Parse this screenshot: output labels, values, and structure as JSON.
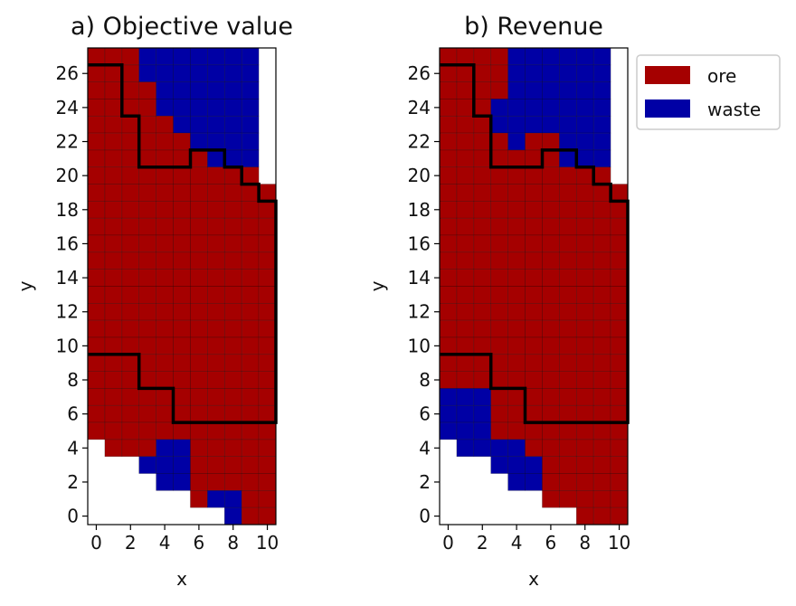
{
  "chart_data": [
    {
      "type": "heatmap",
      "title": "a) Objective value",
      "xlabel": "x",
      "ylabel": "y",
      "xlim": [
        -0.5,
        10.5
      ],
      "ylim": [
        -0.5,
        27.5
      ],
      "xticks": [
        "0",
        "2",
        "4",
        "6",
        "8",
        "10"
      ],
      "yticks": [
        "0",
        "2",
        "4",
        "6",
        "8",
        "10",
        "12",
        "14",
        "16",
        "18",
        "20",
        "22",
        "24",
        "26"
      ],
      "categories": [
        "ore",
        "waste"
      ],
      "grid_rows_top_to_bottom": [
        "OOOWWWWWWW.",
        "OOOWWWWWWW.",
        "OOOOWWWWWW.",
        "OOOOWWWWWW.",
        "OOOOOWWWWW.",
        "OOOOOOWWWW.",
        "OOOOOOOWWW.",
        "OOOOOOOOOO.",
        "OOOOOOOOOOO",
        "OOOOOOOOOOO",
        "OOOOOOOOOOO",
        "OOOOOOOOOOO",
        "OOOOOOOOOOO",
        "OOOOOOOOOOO",
        "OOOOOOOOOOO",
        "OOOOOOOOOOO",
        "OOOOOOOOOOO",
        "OOOOOOOOOOO",
        "OOOOOOOOOOO",
        "OOOOOOOOOOO",
        "OOOOOOOOOOO",
        "OOOOOOOOOOO",
        "OOOOOOOOOOO",
        ".OOOWWOOOOO",
        "...WWWOOOOO",
        "....WWOOOOO",
        "......OWWOO",
        "........WOO"
      ],
      "pit_boundary": [
        [
          -0.5,
          26.5
        ],
        [
          1.5,
          26.5
        ],
        [
          1.5,
          23.5
        ],
        [
          2.5,
          23.5
        ],
        [
          2.5,
          20.5
        ],
        [
          5.5,
          20.5
        ],
        [
          5.5,
          21.5
        ],
        [
          7.5,
          21.5
        ],
        [
          7.5,
          20.5
        ],
        [
          8.5,
          20.5
        ],
        [
          8.5,
          19.5
        ],
        [
          9.5,
          19.5
        ],
        [
          9.5,
          18.5
        ],
        [
          10.5,
          18.5
        ],
        [
          10.5,
          5.5
        ],
        [
          4.5,
          5.5
        ],
        [
          4.5,
          7.5
        ],
        [
          2.5,
          7.5
        ],
        [
          2.5,
          9.5
        ],
        [
          -0.5,
          9.5
        ]
      ]
    },
    {
      "type": "heatmap",
      "title": "b) Revenue",
      "xlabel": "x",
      "ylabel": "y",
      "xlim": [
        -0.5,
        10.5
      ],
      "ylim": [
        -0.5,
        27.5
      ],
      "xticks": [
        "0",
        "2",
        "4",
        "6",
        "8",
        "10"
      ],
      "yticks": [
        "0",
        "2",
        "4",
        "6",
        "8",
        "10",
        "12",
        "14",
        "16",
        "18",
        "20",
        "22",
        "24",
        "26"
      ],
      "categories": [
        "ore",
        "waste"
      ],
      "grid_rows_top_to_bottom": [
        "OOOOWWWWWW.",
        "OOOOWWWWWW.",
        "OOOOWWWWWW.",
        "OOOWWWWWWW.",
        "OOOWWWWWWW.",
        "OOOOWOOWWW.",
        "OOOOOOOWWW.",
        "OOOOOOOOOO.",
        "OOOOOOOOOOO",
        "OOOOOOOOOOO",
        "OOOOOOOOOOO",
        "OOOOOOOOOOO",
        "OOOOOOOOOOO",
        "OOOOOOOOOOO",
        "OOOOOOOOOOO",
        "OOOOOOOOOOO",
        "OOOOOOOOOOO",
        "OOOOOOOOOOO",
        "OOOOOOOOOOO",
        "OOOOOOOOOOO",
        "WWWOOOOOOOO",
        "WWWOOOOOOOO",
        "WWWOOOOOOOO",
        ".WWWWOOOOOO",
        "...WWWOOOOO",
        "....WWOOOOO",
        "......OOOOO",
        "........OOO"
      ],
      "pit_boundary": [
        [
          -0.5,
          26.5
        ],
        [
          1.5,
          26.5
        ],
        [
          1.5,
          23.5
        ],
        [
          2.5,
          23.5
        ],
        [
          2.5,
          20.5
        ],
        [
          5.5,
          20.5
        ],
        [
          5.5,
          21.5
        ],
        [
          7.5,
          21.5
        ],
        [
          7.5,
          20.5
        ],
        [
          8.5,
          20.5
        ],
        [
          8.5,
          19.5
        ],
        [
          9.5,
          19.5
        ],
        [
          9.5,
          18.5
        ],
        [
          10.5,
          18.5
        ],
        [
          10.5,
          5.5
        ],
        [
          4.5,
          5.5
        ],
        [
          4.5,
          7.5
        ],
        [
          2.5,
          7.5
        ],
        [
          2.5,
          9.5
        ],
        [
          -0.5,
          9.5
        ]
      ]
    }
  ],
  "legend": {
    "placement": "top-right",
    "items": [
      {
        "label": "ore",
        "color": "#a50000"
      },
      {
        "label": "waste",
        "color": "#0000a5"
      }
    ]
  },
  "colors": {
    "ore": "#a50000",
    "waste": "#0000a5",
    "boundary": "#000000"
  }
}
